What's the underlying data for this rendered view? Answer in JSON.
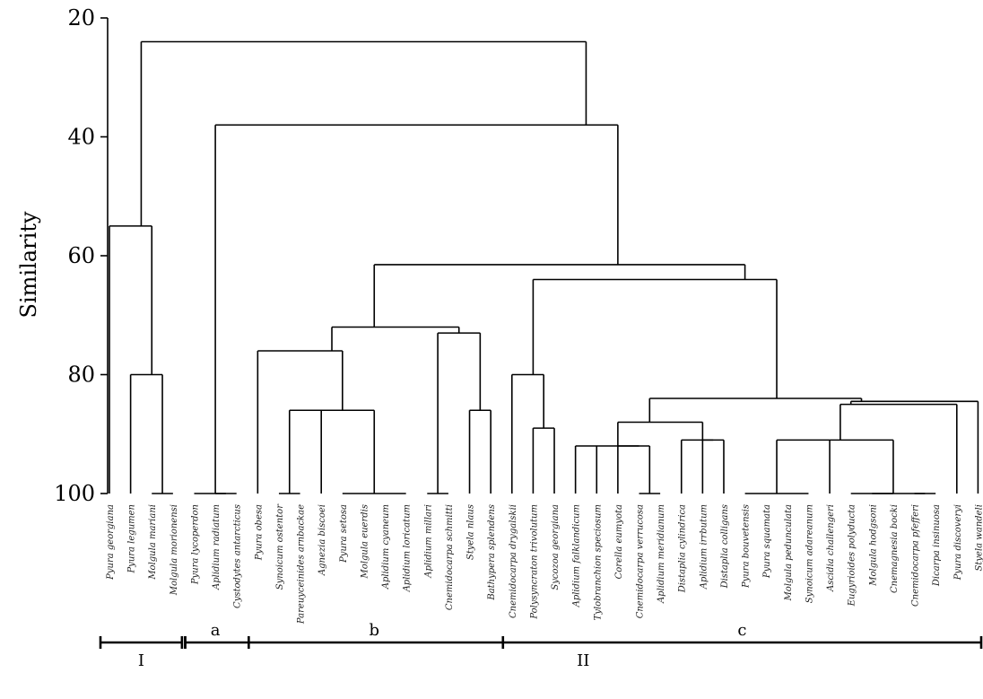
{
  "chart_data": {
    "type": "dendrogram",
    "ylabel": "Similarity",
    "yticks": [
      20,
      40,
      60,
      80,
      100
    ],
    "ylim": [
      20,
      100
    ],
    "leaves": [
      "Pyura georgiana",
      "Pyura legumen",
      "Molgula mariani",
      "Molgula morionensi",
      "Pyura lycoperdon",
      "Aplidium radiatum",
      "Cystodytes antarcticus",
      "Pyura obesa",
      "Synoicum ostentor",
      "Pareuyceinides arnbackae",
      "Agnezia biscoei",
      "Pyura setosa",
      "Molgula euerdis",
      "Aplidium cyaneum",
      "Aplidium loricatum",
      "Aplidium millari",
      "Cnemidocarpa schmitti",
      "Styela nlaus",
      "Bathypera splendens",
      "Cnemidocarpa drygalskii",
      "Polysyncraton trivolutum",
      "Sycozoa georgiana",
      "Aplidium falklandicum",
      "Tylobranchion speciosum",
      "Corella eumyota",
      "Cnemidocarpa verrucosa",
      "Aplidium meridianum",
      "Distaplia cylindrica",
      "Aplidium irrbutum",
      "Distaplia colligans",
      "Pyura bouvetensis",
      "Pyura squamata",
      "Molgula pedunculata",
      "Synoicum adareanum",
      "Ascidia challengeri",
      "Eugyrioides polyducta",
      "Molgula hodgsoni",
      "Cnemagnesia bocki",
      "Cnemidocarpa pfefferi",
      "Dicarpa insinuosa",
      "Pyura discoveryi",
      "Styela wandeli"
    ],
    "clusters": [
      {
        "members": [
          0,
          1,
          2,
          3
        ],
        "similarity": 55
      },
      {
        "members": [
          2,
          3
        ],
        "similarity": 100
      },
      {
        "members": [
          1,
          2,
          3
        ],
        "similarity": 80
      },
      {
        "members": [
          5,
          6
        ],
        "similarity": 100
      },
      {
        "members": [
          4,
          5,
          6
        ],
        "similarity": 100
      },
      {
        "members": [
          8,
          9
        ],
        "similarity": 100
      },
      {
        "members": [
          11,
          12,
          13,
          14
        ],
        "similarity": 100
      },
      {
        "members": [
          10,
          11,
          12,
          13,
          14
        ],
        "similarity": 86
      },
      {
        "members": [
          8,
          9,
          10,
          11,
          12,
          13,
          14
        ],
        "similarity": 86
      },
      {
        "members": [
          7,
          8,
          9,
          10,
          11,
          12,
          13,
          14
        ],
        "similarity": 76
      },
      {
        "members": [
          15,
          16
        ],
        "similarity": 100
      },
      {
        "members": [
          17,
          18
        ],
        "similarity": 86
      },
      {
        "members": [
          15,
          16,
          17,
          18
        ],
        "similarity": 73
      },
      {
        "members": [
          7,
          8,
          9,
          10,
          11,
          12,
          13,
          14,
          15,
          16,
          17,
          18
        ],
        "similarity": 72
      },
      {
        "members": [
          20,
          21
        ],
        "similarity": 89
      },
      {
        "members": [
          19,
          20,
          21
        ],
        "similarity": 80
      },
      {
        "members": [
          25,
          26
        ],
        "similarity": 100
      },
      {
        "members": [
          24,
          25,
          26
        ],
        "similarity": 92
      },
      {
        "members": [
          22,
          23,
          24,
          25,
          26
        ],
        "similarity": 92
      },
      {
        "members": [
          28,
          29
        ],
        "similarity": 91
      },
      {
        "members": [
          27,
          28,
          29
        ],
        "similarity": 91
      },
      {
        "members": [
          22,
          23,
          24,
          25,
          26,
          27,
          28,
          29
        ],
        "similarity": 88
      },
      {
        "members": [
          30,
          31,
          32,
          33
        ],
        "similarity": 100
      },
      {
        "members": [
          35,
          36,
          37
        ],
        "similarity": 100
      },
      {
        "members": [
          38,
          39
        ],
        "similarity": 100
      },
      {
        "members": [
          35,
          36,
          37,
          38,
          39
        ],
        "similarity": 100
      },
      {
        "members": [
          30,
          31,
          32,
          33,
          34,
          35,
          36,
          37,
          38,
          39
        ],
        "similarity": 91
      },
      {
        "members": [
          30,
          31,
          32,
          33,
          34,
          35,
          36,
          37,
          38,
          39,
          40
        ],
        "similarity": 85
      },
      {
        "members": [
          30,
          31,
          32,
          33,
          34,
          35,
          36,
          37,
          38,
          39,
          40,
          41
        ],
        "similarity": 84.5
      },
      {
        "members": [
          22,
          23,
          24,
          25,
          26,
          27,
          28,
          29,
          30,
          31,
          32,
          33,
          34,
          35,
          36,
          37,
          38,
          39,
          40,
          41
        ],
        "similarity": 84
      },
      {
        "members": [
          19,
          20,
          21,
          22,
          23,
          24,
          25,
          26,
          27,
          28,
          29,
          30,
          31,
          32,
          33,
          34,
          35,
          36,
          37,
          38,
          39,
          40,
          41
        ],
        "similarity": 64
      },
      {
        "members": [
          7,
          8,
          9,
          10,
          11,
          12,
          13,
          14,
          15,
          16,
          17,
          18,
          19,
          20,
          21,
          22,
          23,
          24,
          25,
          26,
          27,
          28,
          29,
          30,
          31,
          32,
          33,
          34,
          35,
          36,
          37,
          38,
          39,
          40,
          41
        ],
        "similarity": 61.5
      },
      {
        "members": [
          4,
          5,
          6,
          7,
          8,
          9,
          10,
          11,
          12,
          13,
          14,
          15,
          16,
          17,
          18,
          19,
          20,
          21,
          22,
          23,
          24,
          25,
          26,
          27,
          28,
          29,
          30,
          31,
          32,
          33,
          34,
          35,
          36,
          37,
          38,
          39,
          40,
          41
        ],
        "similarity": 38
      },
      {
        "members": [
          0,
          1,
          2,
          3,
          4,
          5,
          6,
          7,
          8,
          9,
          10,
          11,
          12,
          13,
          14,
          15,
          16,
          17,
          18,
          19,
          20,
          21,
          22,
          23,
          24,
          25,
          26,
          27,
          28,
          29,
          30,
          31,
          32,
          33,
          34,
          35,
          36,
          37,
          38,
          39,
          40,
          41
        ],
        "similarity": 24
      }
    ],
    "groups": [
      {
        "label": "I",
        "first_leaf": 0,
        "last_leaf": 3
      },
      {
        "label": "II",
        "first_leaf": 4,
        "last_leaf": 41
      }
    ],
    "subgroups": [
      {
        "label": "a",
        "first_leaf": 4,
        "last_leaf": 6
      },
      {
        "label": "b",
        "first_leaf": 7,
        "last_leaf": 18
      },
      {
        "label": "c",
        "first_leaf": 19,
        "last_leaf": 41
      }
    ]
  }
}
